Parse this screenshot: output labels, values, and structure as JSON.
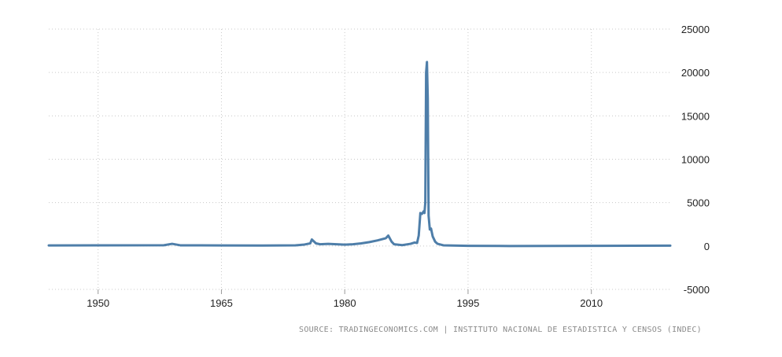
{
  "source_text": "SOURCE: TRADINGECONOMICS.COM | INSTITUTO NACIONAL DE ESTADISTICA Y CENSOS (INDEC)",
  "colors": {
    "line": "#4e7ea9",
    "grid": "#c8c8c8",
    "text": "#222222",
    "source": "#8a8a8a"
  },
  "chart_data": {
    "type": "line",
    "title": "",
    "xlabel": "",
    "ylabel": "",
    "xlim": [
      1944,
      2019.6
    ],
    "ylim": [
      -5000,
      25000
    ],
    "x_ticks": [
      1950,
      1965,
      1980,
      1995,
      2010
    ],
    "y_ticks": [
      -5000,
      0,
      5000,
      10000,
      15000,
      20000,
      25000
    ],
    "y_axis_position": "right",
    "grid": true,
    "legend": "none",
    "series": [
      {
        "x": [
          1944,
          1950,
          1958,
          1959,
          1960,
          1965,
          1970,
          1974,
          1975,
          1975.8,
          1976,
          1976.5,
          1977,
          1978,
          1979,
          1980,
          1981,
          1982,
          1983,
          1984,
          1985,
          1985.3,
          1985.7,
          1986,
          1987,
          1988,
          1988.5,
          1988.8,
          1989,
          1989.2,
          1989.4,
          1989.6,
          1989.7,
          1989.8,
          1989.9,
          1990,
          1990.1,
          1990.2,
          1990.35,
          1990.5,
          1990.7,
          1991,
          1991.3,
          1992,
          1995,
          2000,
          2005,
          2010,
          2015,
          2019.6
        ],
        "y": [
          60,
          80,
          90,
          250,
          80,
          60,
          50,
          80,
          150,
          300,
          750,
          300,
          200,
          250,
          200,
          150,
          200,
          300,
          450,
          650,
          900,
          1200,
          500,
          200,
          100,
          250,
          400,
          350,
          1200,
          3800,
          3700,
          4000,
          3800,
          5000,
          20000,
          21200,
          17000,
          3500,
          1900,
          2000,
          1100,
          500,
          250,
          80,
          20,
          0,
          10,
          20,
          30,
          40
        ]
      }
    ]
  }
}
